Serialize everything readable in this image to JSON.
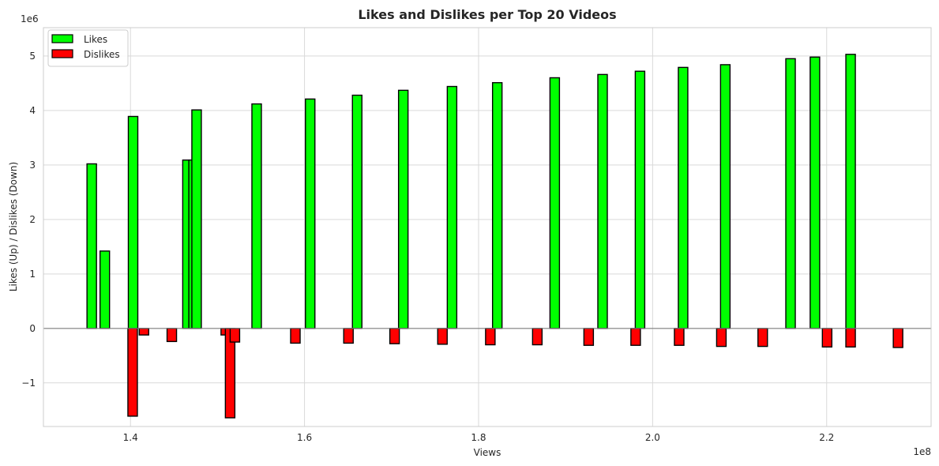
{
  "chart_data": {
    "type": "bar",
    "title": "Likes and Dislikes per Top 20 Videos",
    "xlabel": "Views",
    "ylabel": "Likes (Up) / Dislikes (Down)",
    "x_offset_label": "1e8",
    "y_offset_label": "1e6",
    "xlim": [
      1.3,
      2.32
    ],
    "ylim": [
      -1.8,
      5.52
    ],
    "x_ticks": [
      1.4,
      1.6,
      1.8,
      2.0,
      2.2
    ],
    "x_tick_labels": [
      "1.4",
      "1.6",
      "1.8",
      "2.0",
      "2.2"
    ],
    "y_ticks": [
      -1,
      0,
      1,
      2,
      3,
      4,
      5
    ],
    "y_tick_labels": [
      "−1",
      "0",
      "1",
      "2",
      "3",
      "4",
      "5"
    ],
    "grid": true,
    "legend_position": "top-left",
    "series": [
      {
        "name": "Likes",
        "color": "#00ff00",
        "points": [
          {
            "x": 1.3555,
            "y": 3.02
          },
          {
            "x": 1.3705,
            "y": 1.42
          },
          {
            "x": 1.403,
            "y": 3.89
          },
          {
            "x": 1.4655,
            "y": 3.09
          },
          {
            "x": 1.4725,
            "y": 3.09
          },
          {
            "x": 1.476,
            "y": 4.01
          },
          {
            "x": 1.545,
            "y": 4.12
          },
          {
            "x": 1.6065,
            "y": 4.21
          },
          {
            "x": 1.6605,
            "y": 4.28
          },
          {
            "x": 1.7135,
            "y": 4.37
          },
          {
            "x": 1.7695,
            "y": 4.44
          },
          {
            "x": 1.8215,
            "y": 4.51
          },
          {
            "x": 1.8875,
            "y": 4.6
          },
          {
            "x": 1.9425,
            "y": 4.66
          },
          {
            "x": 1.9855,
            "y": 4.72
          },
          {
            "x": 2.035,
            "y": 4.79
          },
          {
            "x": 2.0835,
            "y": 4.84
          },
          {
            "x": 2.1585,
            "y": 4.95
          },
          {
            "x": 2.1865,
            "y": 4.98
          },
          {
            "x": 2.2275,
            "y": 5.03
          }
        ]
      },
      {
        "name": "Dislikes",
        "color": "#ff0000",
        "points": [
          {
            "x": 1.4025,
            "y": -1.61
          },
          {
            "x": 1.4155,
            "y": -0.12
          },
          {
            "x": 1.4475,
            "y": -0.24
          },
          {
            "x": 1.5095,
            "y": -0.12
          },
          {
            "x": 1.5145,
            "y": -1.64
          },
          {
            "x": 1.52,
            "y": -0.25
          },
          {
            "x": 1.5895,
            "y": -0.27
          },
          {
            "x": 1.6505,
            "y": -0.27
          },
          {
            "x": 1.7035,
            "y": -0.28
          },
          {
            "x": 1.7585,
            "y": -0.29
          },
          {
            "x": 1.8135,
            "y": -0.3
          },
          {
            "x": 1.8675,
            "y": -0.3
          },
          {
            "x": 1.9265,
            "y": -0.31
          },
          {
            "x": 1.9805,
            "y": -0.31
          },
          {
            "x": 2.0305,
            "y": -0.31
          },
          {
            "x": 2.079,
            "y": -0.33
          },
          {
            "x": 2.1265,
            "y": -0.33
          },
          {
            "x": 2.2005,
            "y": -0.34
          },
          {
            "x": 2.2275,
            "y": -0.34
          },
          {
            "x": 2.282,
            "y": -0.35
          }
        ]
      }
    ]
  }
}
